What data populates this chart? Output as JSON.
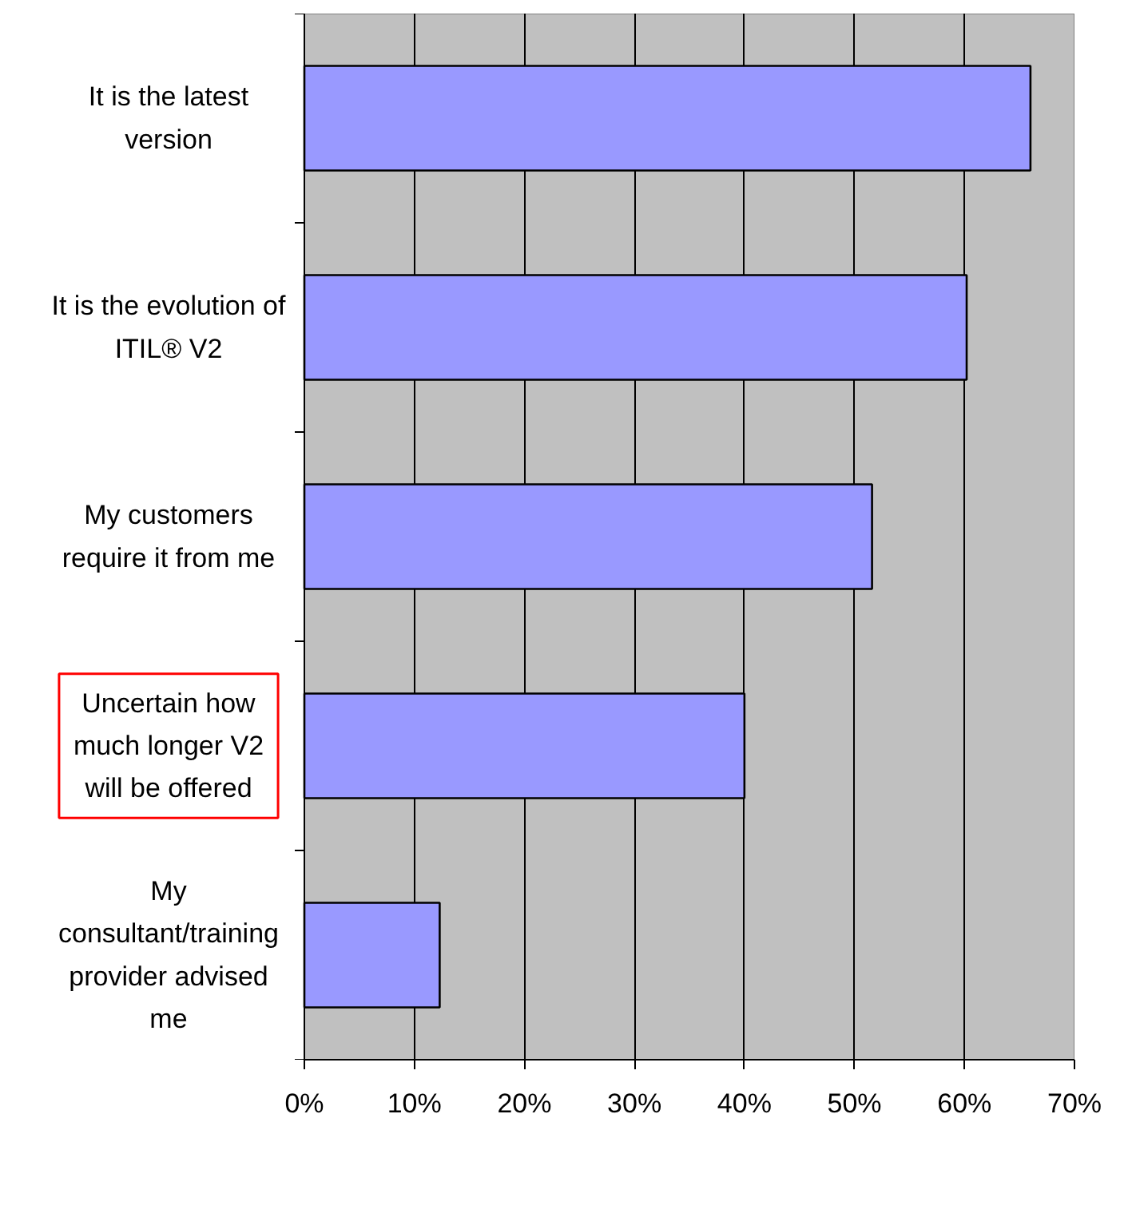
{
  "chart_data": {
    "type": "bar",
    "orientation": "horizontal",
    "categories": [
      "It is the latest\nversion",
      "It is the evolution of\nITIL® V2",
      "My customers\nrequire it from me",
      "Uncertain how\nmuch longer V2\nwill be offered",
      "My\nconsultant/training\nprovider advised\nme"
    ],
    "values": [
      66,
      60.2,
      51.6,
      40,
      12.3
    ],
    "color": "#9999ff",
    "xlim": [
      0,
      70
    ],
    "xticks": [
      {
        "value": 0,
        "label": "0%"
      },
      {
        "value": 10,
        "label": "10%"
      },
      {
        "value": 20,
        "label": "20%"
      },
      {
        "value": 30,
        "label": "30%"
      },
      {
        "value": 40,
        "label": "40%"
      },
      {
        "value": 50,
        "label": "50%"
      },
      {
        "value": 60,
        "label": "60%"
      },
      {
        "value": 70,
        "label": "70%"
      }
    ],
    "grid": "x"
  }
}
